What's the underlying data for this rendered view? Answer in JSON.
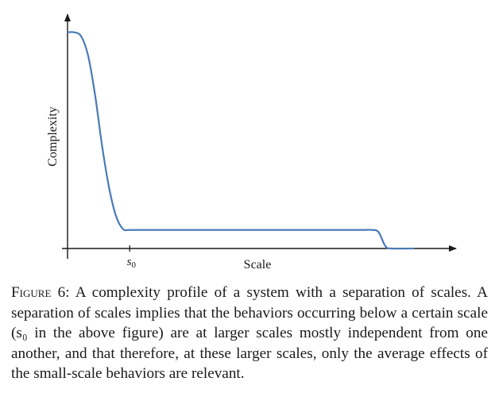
{
  "chart_data": {
    "type": "line",
    "title": "",
    "xlabel": "Scale",
    "ylabel": "Complexity",
    "x_ticks": [
      {
        "value": 0.18,
        "label_main": "s",
        "label_sub": "0"
      }
    ],
    "series": [
      {
        "color": "#4a7ab7",
        "x": [
          0.0,
          0.02,
          0.04,
          0.06,
          0.08,
          0.1,
          0.12,
          0.14,
          0.16,
          0.18,
          0.2,
          0.3,
          0.4,
          0.5,
          0.6,
          0.7,
          0.78,
          0.79,
          0.8,
          0.82,
          0.84,
          0.86,
          0.88,
          0.9,
          0.92,
          0.94,
          1.0
        ],
        "y": [
          0.99,
          0.99,
          0.97,
          0.88,
          0.7,
          0.47,
          0.28,
          0.15,
          0.09,
          0.085,
          0.085,
          0.085,
          0.085,
          0.085,
          0.085,
          0.085,
          0.085,
          0.085,
          0.085,
          0.085,
          0.085,
          0.085,
          0.085,
          0.075,
          0.01,
          0.0,
          0.0
        ]
      }
    ],
    "xlim": [
      0,
      1.1
    ],
    "ylim": [
      0,
      1.1
    ],
    "grid": false,
    "axis_color": "#1a1a1a"
  },
  "caption": {
    "label": "Figure 6:",
    "text": "A complexity profile of a system with a separation of scales. A separation of scales implies that the behaviors occurring below a certain scale (s₀ in the above figure) are at larger scales mostly independent from one another, and that therefore, at these larger scales, only the average effects of the small-scale behaviors are relevant."
  }
}
